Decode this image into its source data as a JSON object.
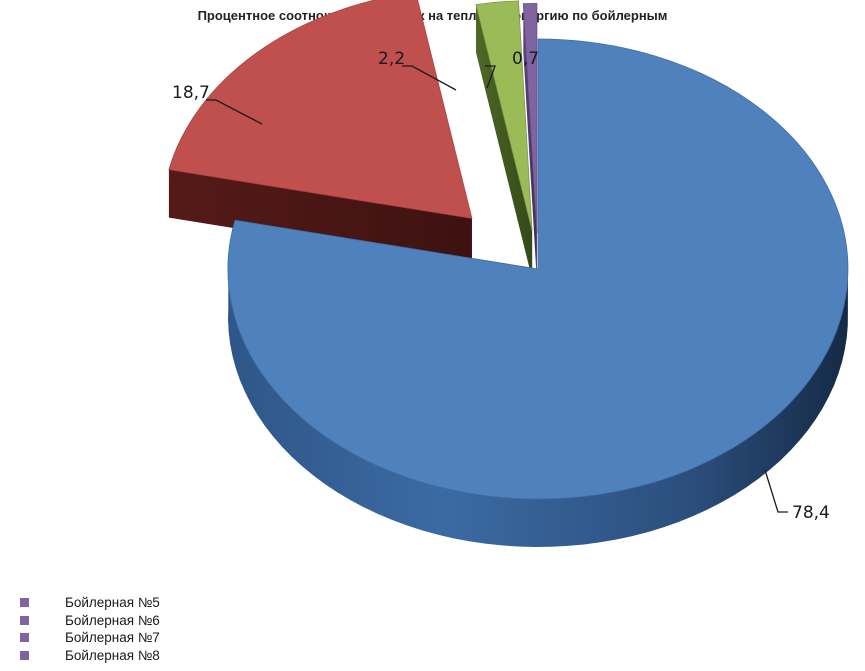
{
  "chart_data": {
    "type": "pie",
    "title": "Процентное соотношение нагрузок на тепловую энергию по бойлерным",
    "slices": [
      {
        "label": "Бойлерная №5",
        "value": 78.4,
        "value_label": "78,4",
        "color": "#4f81bd"
      },
      {
        "label": "Бойлерная №6",
        "value": 18.7,
        "value_label": "18,7",
        "color": "#c0504d"
      },
      {
        "label": "Бойлерная №7",
        "value": 2.2,
        "value_label": "2,2",
        "color": "#9bbb59"
      },
      {
        "label": "Бойлерная №8",
        "value": 0.7,
        "value_label": "0,7",
        "color": "#8064a2"
      }
    ],
    "three_d": true,
    "exploded": true,
    "legend_position": "bottom-left",
    "legend_marker_color": "#8064a2"
  }
}
